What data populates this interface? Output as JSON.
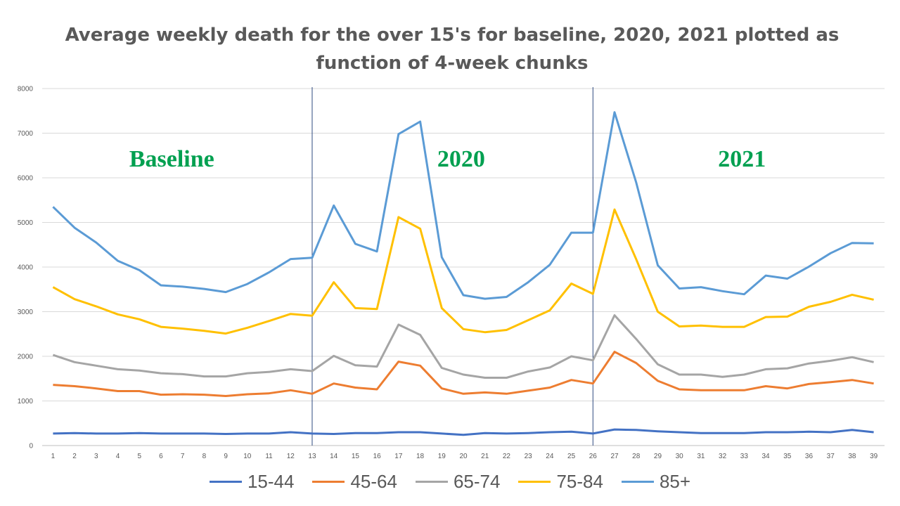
{
  "chart_data": {
    "type": "line",
    "title_line1": "Average weekly death for the over 15's for baseline, 2020, 2021 plotted as",
    "title_line2": "function of 4-week chunks",
    "xlabel": "",
    "ylabel": "",
    "x": [
      1,
      2,
      3,
      4,
      5,
      6,
      7,
      8,
      9,
      10,
      11,
      12,
      13,
      14,
      15,
      16,
      17,
      18,
      19,
      20,
      21,
      22,
      23,
      24,
      25,
      26,
      27,
      28,
      29,
      30,
      31,
      32,
      33,
      34,
      35,
      36,
      37,
      38,
      39
    ],
    "ylim": [
      0,
      8000
    ],
    "yticks": [
      0,
      1000,
      2000,
      3000,
      4000,
      5000,
      6000,
      7000,
      8000
    ],
    "grid": "horizontal",
    "legend_position": "bottom",
    "separators_at_x": [
      13,
      26
    ],
    "regions": [
      {
        "label": "Baseline",
        "x_center": 6.5
      },
      {
        "label": "2020",
        "x_center": 19.9
      },
      {
        "label": "2021",
        "x_center": 32.9
      }
    ],
    "series": [
      {
        "name": "15-44",
        "color": "#4472c4",
        "values": [
          270,
          280,
          270,
          270,
          280,
          270,
          270,
          270,
          260,
          270,
          270,
          300,
          270,
          260,
          280,
          280,
          300,
          300,
          270,
          240,
          280,
          270,
          280,
          300,
          310,
          270,
          360,
          350,
          320,
          300,
          280,
          280,
          280,
          300,
          300,
          310,
          300,
          350,
          300
        ]
      },
      {
        "name": "45-64",
        "color": "#ed7d31",
        "values": [
          1360,
          1330,
          1280,
          1220,
          1220,
          1140,
          1150,
          1140,
          1110,
          1150,
          1170,
          1240,
          1160,
          1390,
          1300,
          1260,
          1880,
          1790,
          1280,
          1160,
          1190,
          1160,
          1230,
          1300,
          1470,
          1390,
          2100,
          1850,
          1450,
          1260,
          1240,
          1240,
          1240,
          1330,
          1280,
          1380,
          1420,
          1470,
          1390
        ]
      },
      {
        "name": "65-74",
        "color": "#a5a5a5",
        "values": [
          2030,
          1870,
          1790,
          1710,
          1680,
          1620,
          1600,
          1550,
          1550,
          1620,
          1650,
          1710,
          1670,
          2010,
          1800,
          1770,
          2710,
          2480,
          1740,
          1590,
          1520,
          1520,
          1660,
          1750,
          2000,
          1910,
          2920,
          2390,
          1820,
          1590,
          1590,
          1540,
          1590,
          1710,
          1730,
          1840,
          1900,
          1980,
          1870
        ]
      },
      {
        "name": "75-84",
        "color": "#ffc000",
        "values": [
          3550,
          3280,
          3120,
          2940,
          2830,
          2660,
          2620,
          2570,
          2510,
          2640,
          2790,
          2950,
          2910,
          3660,
          3080,
          3060,
          5120,
          4860,
          3080,
          2610,
          2540,
          2590,
          2810,
          3030,
          3630,
          3400,
          5290,
          4180,
          3000,
          2670,
          2690,
          2660,
          2660,
          2880,
          2890,
          3110,
          3220,
          3380,
          3270
        ]
      },
      {
        "name": "85+",
        "color": "#5b9bd5",
        "values": [
          5350,
          4880,
          4550,
          4140,
          3930,
          3590,
          3560,
          3510,
          3440,
          3620,
          3880,
          4180,
          4210,
          5380,
          4520,
          4350,
          6980,
          7260,
          4220,
          3370,
          3290,
          3330,
          3660,
          4050,
          4770,
          4770,
          7470,
          5900,
          4040,
          3520,
          3550,
          3460,
          3390,
          3810,
          3740,
          4010,
          4310,
          4540,
          4530
        ]
      }
    ]
  }
}
